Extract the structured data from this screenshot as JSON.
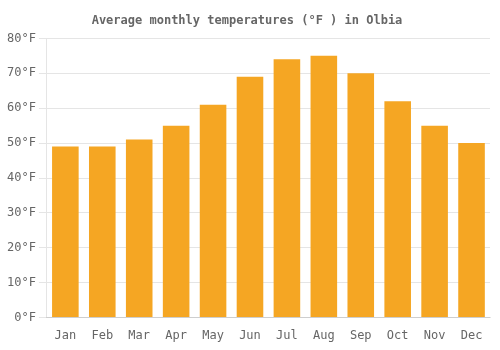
{
  "chart_data": {
    "type": "bar",
    "title": "Average monthly temperatures (°F ) in Olbia",
    "categories": [
      "Jan",
      "Feb",
      "Mar",
      "Apr",
      "May",
      "Jun",
      "Jul",
      "Aug",
      "Sep",
      "Oct",
      "Nov",
      "Dec"
    ],
    "values": [
      49,
      49,
      51,
      55,
      61,
      69,
      74,
      75,
      70,
      62,
      55,
      50
    ],
    "color": "#F5A623",
    "ylim": [
      0,
      80
    ],
    "yticks": [
      {
        "value": 0,
        "label": "0°F"
      },
      {
        "value": 10,
        "label": "10°F"
      },
      {
        "value": 20,
        "label": "20°F"
      },
      {
        "value": 30,
        "label": "30°F"
      },
      {
        "value": 40,
        "label": "40°F"
      },
      {
        "value": 50,
        "label": "50°F"
      },
      {
        "value": 60,
        "label": "60°F"
      },
      {
        "value": 70,
        "label": "70°F"
      },
      {
        "value": 80,
        "label": "80°F"
      }
    ],
    "grid": true
  }
}
